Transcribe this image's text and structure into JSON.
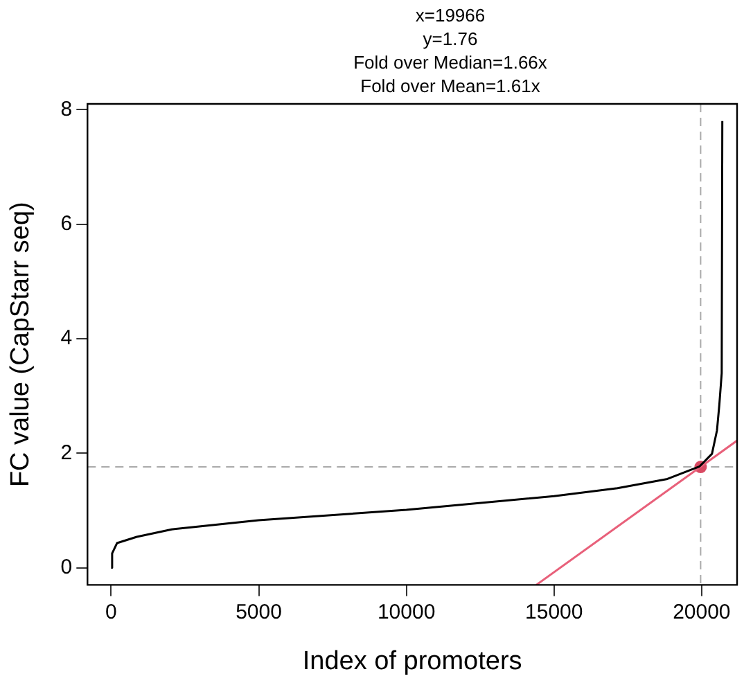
{
  "chart_data": {
    "type": "line",
    "xlabel": "Index of promoters",
    "ylabel": "FC value (CapStarr seq)",
    "annotations": [
      "x=19966",
      "y=1.76",
      "Fold over Median=1.66x",
      "Fold over Mean=1.61x"
    ],
    "xlim": [
      -800,
      21200
    ],
    "ylim": [
      -0.3,
      8.1
    ],
    "xticks": [
      0,
      5000,
      10000,
      15000,
      20000
    ],
    "yticks": [
      0,
      2,
      4,
      6,
      8
    ],
    "grid": false,
    "legend": false,
    "marker": "none",
    "line_style": "solid",
    "series": [
      {
        "color": "#000000",
        "x": [
          0,
          35,
          200,
          870,
          2050,
          5000,
          10000,
          15000,
          17150,
          18840,
          19930,
          20350,
          20520,
          20600,
          20680,
          20700
        ],
        "values": [
          0.0,
          0.25,
          0.43,
          0.54,
          0.67,
          0.83,
          1.01,
          1.25,
          1.39,
          1.55,
          1.77,
          1.99,
          2.4,
          2.85,
          3.4,
          7.8
        ]
      },
      {
        "color": "#e8607a",
        "x": [
          14400,
          21200
        ],
        "values": [
          -0.3,
          2.22
        ]
      },
      {
        "type": "scatter",
        "color": "#d94a63",
        "x": [
          19966
        ],
        "values": [
          1.76
        ],
        "marker": "circle"
      }
    ],
    "ref_lines": [
      {
        "axis": "x",
        "value": 19966,
        "color": "#aaaaaa",
        "line_style": "dashed"
      },
      {
        "axis": "y",
        "value": 1.76,
        "color": "#aaaaaa",
        "line_style": "dashed"
      }
    ]
  }
}
